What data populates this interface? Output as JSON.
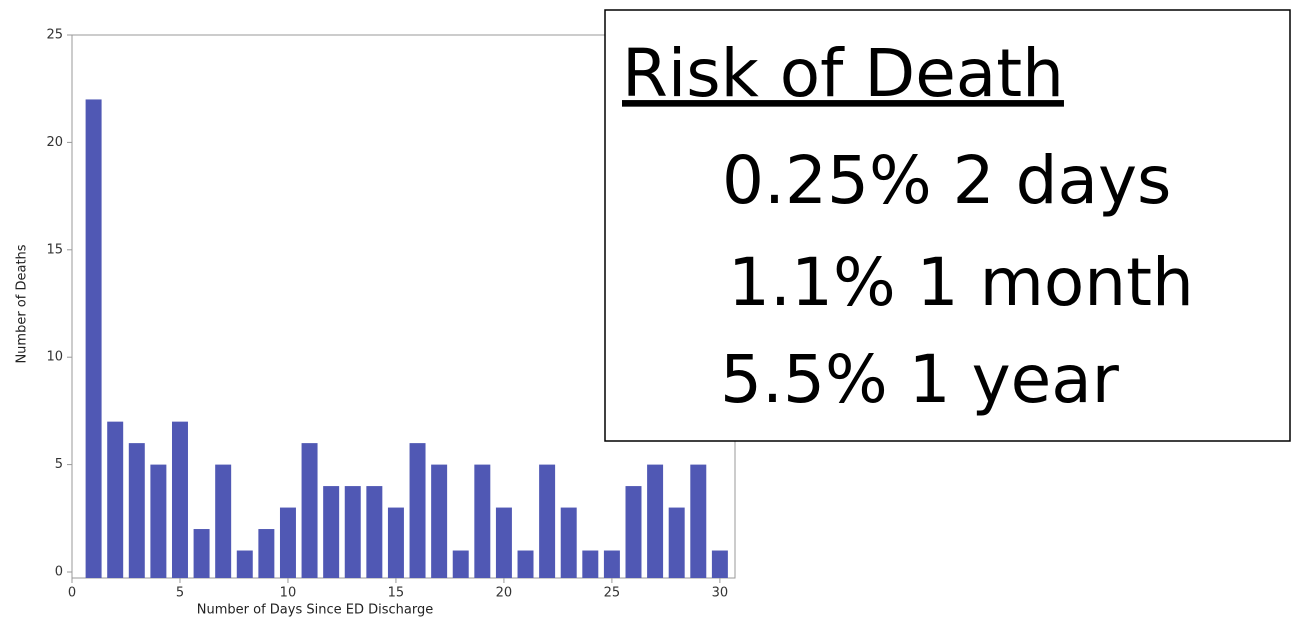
{
  "chart_data": {
    "type": "bar",
    "x": [
      1,
      2,
      3,
      4,
      5,
      6,
      7,
      8,
      9,
      10,
      11,
      12,
      13,
      14,
      15,
      16,
      17,
      18,
      19,
      20,
      21,
      22,
      23,
      24,
      25,
      26,
      27,
      28,
      29,
      30
    ],
    "values": [
      22,
      7,
      6,
      5,
      7,
      2,
      5,
      1,
      2,
      3,
      6,
      4,
      4,
      4,
      3,
      6,
      5,
      1,
      5,
      3,
      1,
      5,
      3,
      1,
      1,
      4,
      5,
      3,
      5,
      1
    ],
    "color": "#5058b4",
    "xlim": [
      0,
      30.7
    ],
    "xticks": [
      0,
      5,
      10,
      15,
      20,
      25,
      30
    ],
    "ylim": [
      0,
      25
    ],
    "yticks": [
      0,
      5,
      10,
      15,
      20,
      25
    ],
    "x_label": "Number of Days Since ED Discharge",
    "y_label": "Number of Deaths",
    "annotation": {
      "title": "Risk of Death",
      "lines": [
        "0.25% 2 days",
        "1.1% 1 month",
        "5.5% 1 year"
      ]
    }
  }
}
